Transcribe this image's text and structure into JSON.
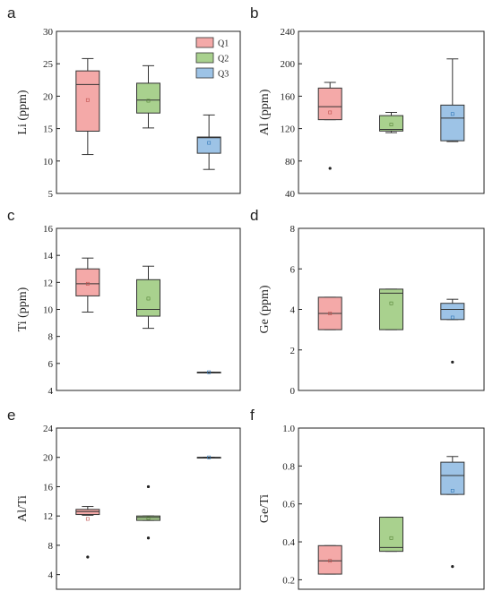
{
  "legend": {
    "entries": [
      {
        "key": "Q1",
        "label": "Q1"
      },
      {
        "key": "Q2",
        "label": "Q2"
      },
      {
        "key": "Q3",
        "label": "Q3"
      }
    ]
  },
  "colors": {
    "Q1": {
      "fill": "#f4a9a8",
      "stroke": "#c0504d"
    },
    "Q2": {
      "fill": "#a9d18e",
      "stroke": "#548235"
    },
    "Q3": {
      "fill": "#9dc3e6",
      "stroke": "#2e75b6"
    }
  },
  "chart_data": [
    {
      "type": "box",
      "letter": "a",
      "ylabel": "Li (ppm)",
      "ylim": [
        5,
        30
      ],
      "yticks": [
        5,
        10,
        15,
        20,
        25,
        30
      ],
      "ytick_labels": [
        "5",
        "10",
        "15",
        "20",
        "25",
        "30"
      ],
      "legend": true,
      "boxes": [
        {
          "series": "Q1",
          "whisker_low": 11.0,
          "q1": 14.6,
          "median": 21.8,
          "q3": 23.9,
          "whisker_high": 25.8,
          "mean": 19.4,
          "outliers": []
        },
        {
          "series": "Q2",
          "whisker_low": 15.1,
          "q1": 17.4,
          "median": 19.4,
          "q3": 22.0,
          "whisker_high": 24.7,
          "mean": 19.3,
          "outliers": []
        },
        {
          "series": "Q3",
          "whisker_low": 8.7,
          "q1": 11.2,
          "median": 13.6,
          "q3": 13.7,
          "whisker_high": 17.1,
          "mean": 12.8,
          "outliers": []
        }
      ]
    },
    {
      "type": "box",
      "letter": "b",
      "ylabel": "Al (ppm)",
      "ylim": [
        40,
        240
      ],
      "yticks": [
        40,
        80,
        120,
        160,
        200,
        240
      ],
      "ytick_labels": [
        "40",
        "80",
        "120",
        "160",
        "200",
        "240"
      ],
      "legend": false,
      "boxes": [
        {
          "series": "Q1",
          "whisker_low": 131,
          "q1": 131,
          "median": 147,
          "q3": 170,
          "whisker_high": 177,
          "mean": 140,
          "outliers": [
            71
          ]
        },
        {
          "series": "Q2",
          "whisker_low": 115,
          "q1": 117,
          "median": 119,
          "q3": 136,
          "whisker_high": 140,
          "mean": 125,
          "outliers": []
        },
        {
          "series": "Q3",
          "whisker_low": 104,
          "q1": 105,
          "median": 133,
          "q3": 149,
          "whisker_high": 206,
          "mean": 138,
          "outliers": []
        }
      ]
    },
    {
      "type": "box",
      "letter": "c",
      "ylabel": "Ti (ppm)",
      "ylim": [
        4,
        16
      ],
      "yticks": [
        4,
        6,
        8,
        10,
        12,
        14,
        16
      ],
      "ytick_labels": [
        "4",
        "6",
        "8",
        "10",
        "12",
        "14",
        "16"
      ],
      "legend": false,
      "boxes": [
        {
          "series": "Q1",
          "whisker_low": 9.8,
          "q1": 11.0,
          "median": 11.9,
          "q3": 13.0,
          "whisker_high": 13.8,
          "mean": 11.9,
          "outliers": []
        },
        {
          "series": "Q2",
          "whisker_low": 8.6,
          "q1": 9.5,
          "median": 10.0,
          "q3": 12.2,
          "whisker_high": 13.2,
          "mean": 10.8,
          "outliers": []
        },
        {
          "series": "Q3",
          "whisker_low": 5.35,
          "q1": 5.35,
          "median": 5.35,
          "q3": 5.35,
          "whisker_high": 5.35,
          "mean": 5.35,
          "outliers": []
        }
      ]
    },
    {
      "type": "box",
      "letter": "d",
      "ylabel": "Ge (ppm)",
      "ylim": [
        0,
        8
      ],
      "yticks": [
        0,
        2,
        4,
        6,
        8
      ],
      "ytick_labels": [
        "0",
        "2",
        "4",
        "6",
        "8"
      ],
      "legend": false,
      "boxes": [
        {
          "series": "Q1",
          "whisker_low": 3.0,
          "q1": 3.0,
          "median": 3.8,
          "q3": 4.6,
          "whisker_high": 4.6,
          "mean": 3.8,
          "outliers": []
        },
        {
          "series": "Q2",
          "whisker_low": 3.0,
          "q1": 3.0,
          "median": 4.8,
          "q3": 5.0,
          "whisker_high": 5.0,
          "mean": 4.3,
          "outliers": []
        },
        {
          "series": "Q3",
          "whisker_low": 3.5,
          "q1": 3.5,
          "median": 4.0,
          "q3": 4.3,
          "whisker_high": 4.5,
          "mean": 3.6,
          "outliers": [
            1.4
          ]
        }
      ]
    },
    {
      "type": "box",
      "letter": "e",
      "ylabel": "Al/Ti",
      "ylim": [
        2,
        24
      ],
      "yticks": [
        4,
        8,
        12,
        16,
        20,
        24
      ],
      "ytick_labels": [
        "4",
        "8",
        "12",
        "16",
        "20",
        "24"
      ],
      "legend": false,
      "boxes": [
        {
          "series": "Q1",
          "whisker_low": 12.1,
          "q1": 12.2,
          "median": 12.6,
          "q3": 12.9,
          "whisker_high": 13.3,
          "mean": 11.6,
          "outliers": [
            6.4
          ]
        },
        {
          "series": "Q2",
          "whisker_low": 11.4,
          "q1": 11.4,
          "median": 11.8,
          "q3": 12.0,
          "whisker_high": 12.0,
          "mean": 11.7,
          "outliers": [
            16.0,
            9.0
          ]
        },
        {
          "series": "Q3",
          "whisker_low": 20.0,
          "q1": 20.0,
          "median": 20.0,
          "q3": 20.0,
          "whisker_high": 20.0,
          "mean": 20.0,
          "outliers": []
        }
      ]
    },
    {
      "type": "box",
      "letter": "f",
      "ylabel": "Ge/Ti",
      "ylim": [
        0.15,
        1.0
      ],
      "yticks": [
        0.2,
        0.4,
        0.6,
        0.8,
        1.0
      ],
      "ytick_labels": [
        "0.2",
        "0.4",
        "0.6",
        "0.8",
        "1.0"
      ],
      "legend": false,
      "boxes": [
        {
          "series": "Q1",
          "whisker_low": 0.23,
          "q1": 0.23,
          "median": 0.3,
          "q3": 0.38,
          "whisker_high": 0.38,
          "mean": 0.3,
          "outliers": []
        },
        {
          "series": "Q2",
          "whisker_low": 0.35,
          "q1": 0.35,
          "median": 0.37,
          "q3": 0.53,
          "whisker_high": 0.53,
          "mean": 0.42,
          "outliers": []
        },
        {
          "series": "Q3",
          "whisker_low": 0.65,
          "q1": 0.65,
          "median": 0.75,
          "q3": 0.82,
          "whisker_high": 0.85,
          "mean": 0.67,
          "outliers": [
            0.27
          ]
        }
      ]
    }
  ]
}
